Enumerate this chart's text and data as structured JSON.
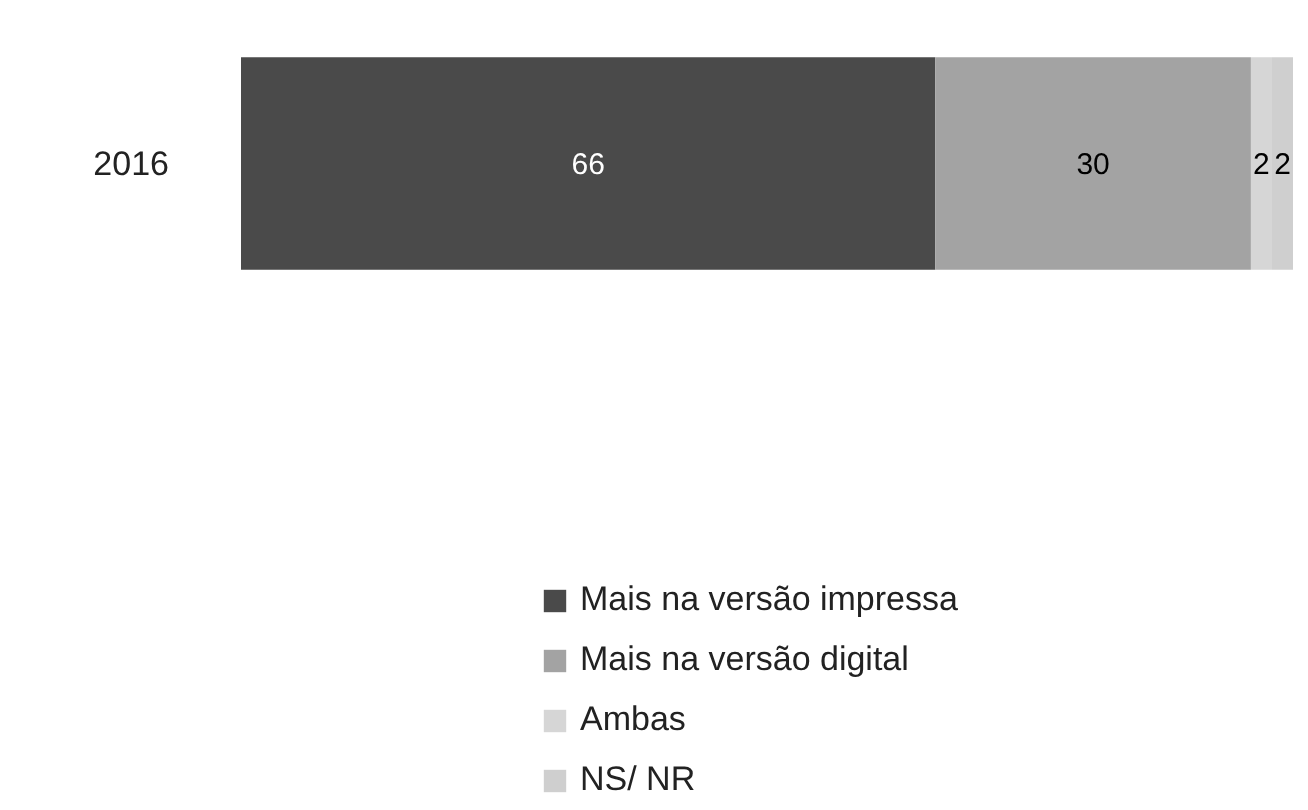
{
  "chart_data": {
    "type": "bar",
    "orientation": "horizontal",
    "stacked": true,
    "data_labels": true,
    "legend": "bottom",
    "grid": false,
    "categories": [
      "2016"
    ],
    "series": [
      {
        "name": "Mais na versão impressa",
        "color": "#4a4a4a",
        "values": [
          66
        ]
      },
      {
        "name": "Mais na versão digital",
        "color": "#a3a3a3",
        "values": [
          30
        ]
      },
      {
        "name": "Ambas",
        "color": "#d6d6d6",
        "values": [
          2
        ]
      },
      {
        "name": "NS/ NR",
        "color": "#cfcfcf",
        "values": [
          2
        ]
      }
    ]
  }
}
